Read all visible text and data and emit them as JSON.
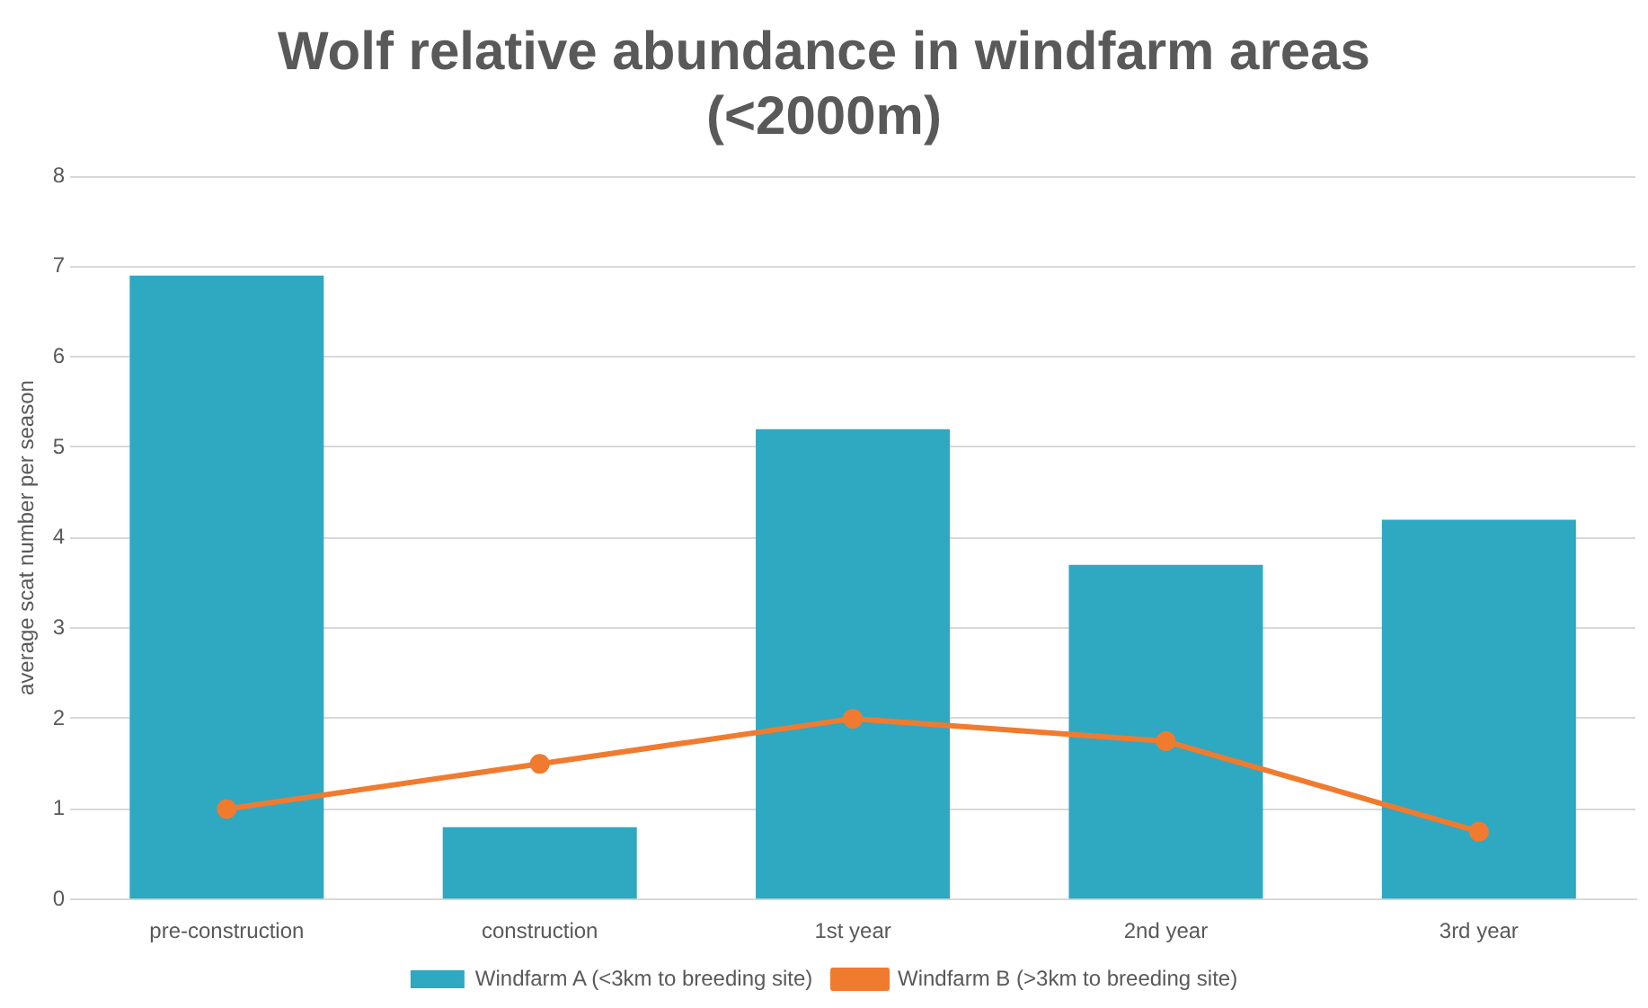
{
  "chart_data": {
    "type": "bar",
    "title": "Wolf relative abundance in windfarm areas (<2000m)",
    "ylabel": "average scat number per season",
    "categories": [
      "pre-construction",
      "construction",
      "1st year",
      "2nd year",
      "3rd year"
    ],
    "series": [
      {
        "name": "Windfarm A (<3km to breeding site)",
        "color": "#2fa8c2",
        "values": [
          6.9,
          0.8,
          5.2,
          3.7,
          4.2
        ]
      },
      {
        "name": "Windfarm B (>3km to breeding site)",
        "type": "line",
        "color": "#f07b2f",
        "values": [
          1.0,
          1.5,
          2.0,
          1.75,
          0.75
        ]
      }
    ],
    "ylim": [
      0,
      8
    ],
    "yticks": [
      0,
      1,
      2,
      3,
      4,
      5,
      6,
      7,
      8
    ],
    "grid": "y",
    "legend": "bottom",
    "marker": "circle",
    "line_style": "solid"
  }
}
